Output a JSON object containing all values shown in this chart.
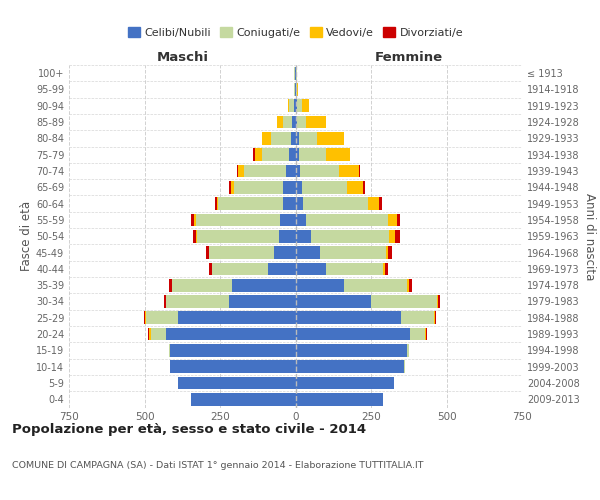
{
  "age_groups": [
    "0-4",
    "5-9",
    "10-14",
    "15-19",
    "20-24",
    "25-29",
    "30-34",
    "35-39",
    "40-44",
    "45-49",
    "50-54",
    "55-59",
    "60-64",
    "65-69",
    "70-74",
    "75-79",
    "80-84",
    "85-89",
    "90-94",
    "95-99",
    "100+"
  ],
  "birth_years": [
    "2009-2013",
    "2004-2008",
    "1999-2003",
    "1994-1998",
    "1989-1993",
    "1984-1988",
    "1979-1983",
    "1974-1978",
    "1969-1973",
    "1964-1968",
    "1959-1963",
    "1954-1958",
    "1949-1953",
    "1944-1948",
    "1939-1943",
    "1934-1938",
    "1929-1933",
    "1924-1928",
    "1919-1923",
    "1914-1918",
    "≤ 1913"
  ],
  "male_celibi": [
    345,
    390,
    415,
    415,
    430,
    390,
    220,
    210,
    90,
    70,
    55,
    50,
    40,
    40,
    30,
    20,
    15,
    10,
    5,
    2,
    2
  ],
  "male_coniugati": [
    0,
    0,
    2,
    5,
    50,
    105,
    210,
    200,
    185,
    215,
    270,
    280,
    215,
    165,
    140,
    90,
    65,
    30,
    15,
    2,
    2
  ],
  "male_vedovi": [
    0,
    0,
    0,
    0,
    5,
    5,
    0,
    0,
    2,
    2,
    5,
    5,
    5,
    10,
    20,
    25,
    30,
    20,
    5,
    0,
    0
  ],
  "male_divorziati": [
    0,
    0,
    0,
    0,
    2,
    2,
    5,
    10,
    10,
    10,
    10,
    10,
    5,
    5,
    5,
    5,
    0,
    0,
    0,
    0,
    0
  ],
  "female_celibi": [
    290,
    325,
    360,
    370,
    380,
    350,
    250,
    160,
    100,
    80,
    50,
    35,
    25,
    20,
    15,
    10,
    10,
    5,
    5,
    2,
    2
  ],
  "female_coniugati": [
    0,
    0,
    2,
    5,
    50,
    110,
    220,
    210,
    190,
    220,
    260,
    270,
    215,
    150,
    130,
    90,
    60,
    30,
    15,
    2,
    2
  ],
  "female_vedovi": [
    0,
    0,
    0,
    0,
    2,
    2,
    2,
    5,
    5,
    5,
    20,
    30,
    35,
    55,
    65,
    80,
    90,
    65,
    25,
    5,
    2
  ],
  "female_divorziati": [
    0,
    0,
    0,
    0,
    2,
    2,
    5,
    10,
    10,
    15,
    15,
    10,
    10,
    5,
    2,
    2,
    0,
    0,
    0,
    0,
    0
  ],
  "color_celibi": "#4472c4",
  "color_coniugati": "#c5d9a0",
  "color_vedovi": "#ffc000",
  "color_divorziati": "#cc0000",
  "legend_labels": [
    "Celibi/Nubili",
    "Coniugati/e",
    "Vedovi/e",
    "Divorziati/e"
  ],
  "title": "Popolazione per età, sesso e stato civile - 2014",
  "subtitle": "COMUNE DI CAMPAGNA (SA) - Dati ISTAT 1° gennaio 2014 - Elaborazione TUTTITALIA.IT",
  "ylabel_left": "Fasce di età",
  "ylabel_right": "Anni di nascita",
  "xlim": 750,
  "bg_color": "#ffffff",
  "grid_color": "#cccccc"
}
